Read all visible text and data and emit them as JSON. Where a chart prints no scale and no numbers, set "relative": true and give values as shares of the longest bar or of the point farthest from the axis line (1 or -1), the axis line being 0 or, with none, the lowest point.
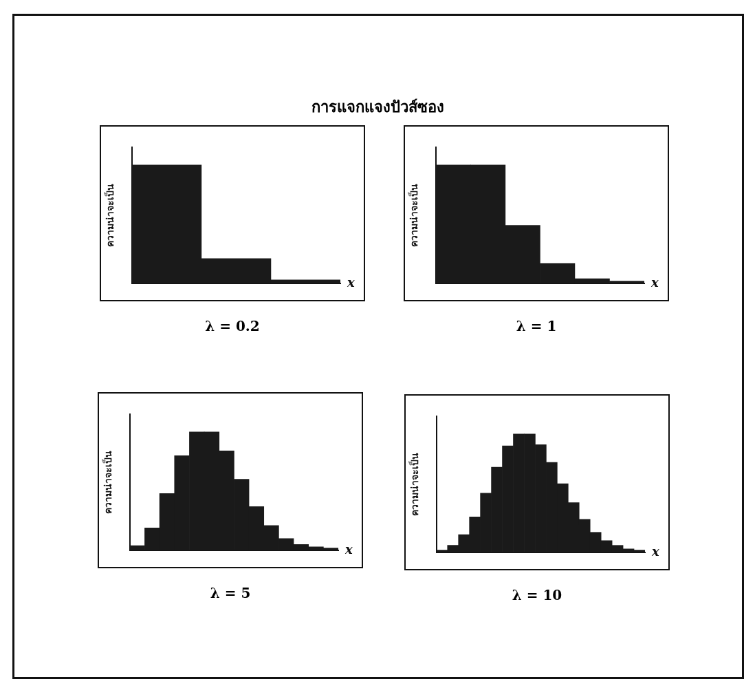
{
  "chart_data": [
    {
      "type": "other",
      "title": "การแจกแจงปัวส์ซอง"
    },
    {
      "type": "bar",
      "title": "λ = 0.2",
      "xlabel": "x",
      "ylabel": "ความน่าจะเป็น",
      "relative": true,
      "color": "#1a1a1a",
      "categories": [
        null,
        null,
        null
      ],
      "values": [
        1,
        0.21,
        0.03
      ]
    },
    {
      "type": "bar",
      "title": "λ = 1",
      "xlabel": "x",
      "ylabel": "ความน่าจะเป็น",
      "relative": true,
      "color": "#1a1a1a",
      "categories": [
        null,
        null,
        null,
        null,
        null,
        null
      ],
      "values": [
        1,
        1,
        0.49,
        0.17,
        0.04,
        0.02
      ]
    },
    {
      "type": "bar",
      "title": "λ = 5",
      "xlabel": "x",
      "ylabel": "ความน่าจะเป็น",
      "relative": true,
      "color": "#1a1a1a",
      "categories": [
        null,
        null,
        null,
        null,
        null,
        null,
        null,
        null,
        null,
        null,
        null,
        null,
        null,
        null
      ],
      "values": [
        0.04,
        0.19,
        0.48,
        0.8,
        1,
        1,
        0.84,
        0.6,
        0.37,
        0.21,
        0.1,
        0.05,
        0.03,
        0.02
      ]
    },
    {
      "type": "bar",
      "title": "λ = 10",
      "xlabel": "x",
      "ylabel": "ความน่าจะเป็น",
      "relative": true,
      "color": "#1a1a1a",
      "categories": [
        null,
        null,
        null,
        null,
        null,
        null,
        null,
        null,
        null,
        null,
        null,
        null,
        null,
        null,
        null,
        null,
        null,
        null,
        null
      ],
      "values": [
        0.02,
        0.06,
        0.15,
        0.3,
        0.5,
        0.72,
        0.9,
        1,
        1,
        0.91,
        0.76,
        0.58,
        0.42,
        0.28,
        0.17,
        0.1,
        0.06,
        0.03,
        0.02
      ]
    }
  ]
}
